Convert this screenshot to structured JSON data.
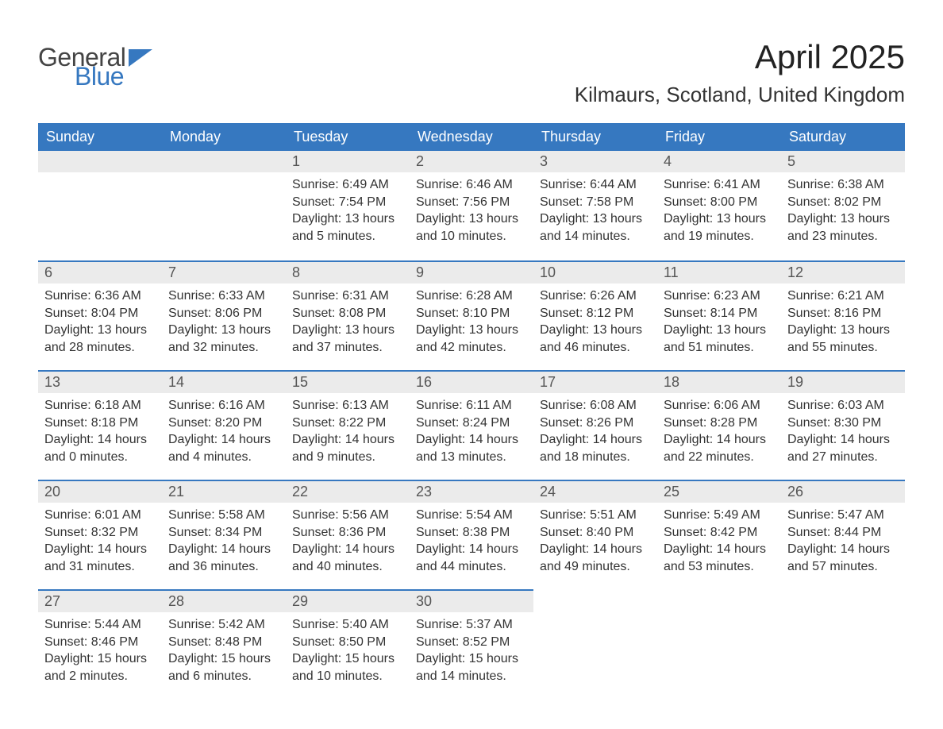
{
  "brand": {
    "word1": "General",
    "word2": "Blue"
  },
  "title": "April 2025",
  "location": "Kilmaurs, Scotland, United Kingdom",
  "colors": {
    "header_bg": "#3678c0",
    "header_text": "#ffffff",
    "strip_bg": "#ebebeb",
    "strip_text": "#555555",
    "body_text": "#333333",
    "border": "#3678c0",
    "page_bg": "#ffffff"
  },
  "day_headers": [
    "Sunday",
    "Monday",
    "Tuesday",
    "Wednesday",
    "Thursday",
    "Friday",
    "Saturday"
  ],
  "weeks": [
    [
      {
        "date": "",
        "sunrise": "",
        "sunset": "",
        "daylight": ""
      },
      {
        "date": "",
        "sunrise": "",
        "sunset": "",
        "daylight": ""
      },
      {
        "date": "1",
        "sunrise": "Sunrise: 6:49 AM",
        "sunset": "Sunset: 7:54 PM",
        "daylight": "Daylight: 13 hours and 5 minutes."
      },
      {
        "date": "2",
        "sunrise": "Sunrise: 6:46 AM",
        "sunset": "Sunset: 7:56 PM",
        "daylight": "Daylight: 13 hours and 10 minutes."
      },
      {
        "date": "3",
        "sunrise": "Sunrise: 6:44 AM",
        "sunset": "Sunset: 7:58 PM",
        "daylight": "Daylight: 13 hours and 14 minutes."
      },
      {
        "date": "4",
        "sunrise": "Sunrise: 6:41 AM",
        "sunset": "Sunset: 8:00 PM",
        "daylight": "Daylight: 13 hours and 19 minutes."
      },
      {
        "date": "5",
        "sunrise": "Sunrise: 6:38 AM",
        "sunset": "Sunset: 8:02 PM",
        "daylight": "Daylight: 13 hours and 23 minutes."
      }
    ],
    [
      {
        "date": "6",
        "sunrise": "Sunrise: 6:36 AM",
        "sunset": "Sunset: 8:04 PM",
        "daylight": "Daylight: 13 hours and 28 minutes."
      },
      {
        "date": "7",
        "sunrise": "Sunrise: 6:33 AM",
        "sunset": "Sunset: 8:06 PM",
        "daylight": "Daylight: 13 hours and 32 minutes."
      },
      {
        "date": "8",
        "sunrise": "Sunrise: 6:31 AM",
        "sunset": "Sunset: 8:08 PM",
        "daylight": "Daylight: 13 hours and 37 minutes."
      },
      {
        "date": "9",
        "sunrise": "Sunrise: 6:28 AM",
        "sunset": "Sunset: 8:10 PM",
        "daylight": "Daylight: 13 hours and 42 minutes."
      },
      {
        "date": "10",
        "sunrise": "Sunrise: 6:26 AM",
        "sunset": "Sunset: 8:12 PM",
        "daylight": "Daylight: 13 hours and 46 minutes."
      },
      {
        "date": "11",
        "sunrise": "Sunrise: 6:23 AM",
        "sunset": "Sunset: 8:14 PM",
        "daylight": "Daylight: 13 hours and 51 minutes."
      },
      {
        "date": "12",
        "sunrise": "Sunrise: 6:21 AM",
        "sunset": "Sunset: 8:16 PM",
        "daylight": "Daylight: 13 hours and 55 minutes."
      }
    ],
    [
      {
        "date": "13",
        "sunrise": "Sunrise: 6:18 AM",
        "sunset": "Sunset: 8:18 PM",
        "daylight": "Daylight: 14 hours and 0 minutes."
      },
      {
        "date": "14",
        "sunrise": "Sunrise: 6:16 AM",
        "sunset": "Sunset: 8:20 PM",
        "daylight": "Daylight: 14 hours and 4 minutes."
      },
      {
        "date": "15",
        "sunrise": "Sunrise: 6:13 AM",
        "sunset": "Sunset: 8:22 PM",
        "daylight": "Daylight: 14 hours and 9 minutes."
      },
      {
        "date": "16",
        "sunrise": "Sunrise: 6:11 AM",
        "sunset": "Sunset: 8:24 PM",
        "daylight": "Daylight: 14 hours and 13 minutes."
      },
      {
        "date": "17",
        "sunrise": "Sunrise: 6:08 AM",
        "sunset": "Sunset: 8:26 PM",
        "daylight": "Daylight: 14 hours and 18 minutes."
      },
      {
        "date": "18",
        "sunrise": "Sunrise: 6:06 AM",
        "sunset": "Sunset: 8:28 PM",
        "daylight": "Daylight: 14 hours and 22 minutes."
      },
      {
        "date": "19",
        "sunrise": "Sunrise: 6:03 AM",
        "sunset": "Sunset: 8:30 PM",
        "daylight": "Daylight: 14 hours and 27 minutes."
      }
    ],
    [
      {
        "date": "20",
        "sunrise": "Sunrise: 6:01 AM",
        "sunset": "Sunset: 8:32 PM",
        "daylight": "Daylight: 14 hours and 31 minutes."
      },
      {
        "date": "21",
        "sunrise": "Sunrise: 5:58 AM",
        "sunset": "Sunset: 8:34 PM",
        "daylight": "Daylight: 14 hours and 36 minutes."
      },
      {
        "date": "22",
        "sunrise": "Sunrise: 5:56 AM",
        "sunset": "Sunset: 8:36 PM",
        "daylight": "Daylight: 14 hours and 40 minutes."
      },
      {
        "date": "23",
        "sunrise": "Sunrise: 5:54 AM",
        "sunset": "Sunset: 8:38 PM",
        "daylight": "Daylight: 14 hours and 44 minutes."
      },
      {
        "date": "24",
        "sunrise": "Sunrise: 5:51 AM",
        "sunset": "Sunset: 8:40 PM",
        "daylight": "Daylight: 14 hours and 49 minutes."
      },
      {
        "date": "25",
        "sunrise": "Sunrise: 5:49 AM",
        "sunset": "Sunset: 8:42 PM",
        "daylight": "Daylight: 14 hours and 53 minutes."
      },
      {
        "date": "26",
        "sunrise": "Sunrise: 5:47 AM",
        "sunset": "Sunset: 8:44 PM",
        "daylight": "Daylight: 14 hours and 57 minutes."
      }
    ],
    [
      {
        "date": "27",
        "sunrise": "Sunrise: 5:44 AM",
        "sunset": "Sunset: 8:46 PM",
        "daylight": "Daylight: 15 hours and 2 minutes."
      },
      {
        "date": "28",
        "sunrise": "Sunrise: 5:42 AM",
        "sunset": "Sunset: 8:48 PM",
        "daylight": "Daylight: 15 hours and 6 minutes."
      },
      {
        "date": "29",
        "sunrise": "Sunrise: 5:40 AM",
        "sunset": "Sunset: 8:50 PM",
        "daylight": "Daylight: 15 hours and 10 minutes."
      },
      {
        "date": "30",
        "sunrise": "Sunrise: 5:37 AM",
        "sunset": "Sunset: 8:52 PM",
        "daylight": "Daylight: 15 hours and 14 minutes."
      },
      {
        "date": "",
        "sunrise": "",
        "sunset": "",
        "daylight": ""
      },
      {
        "date": "",
        "sunrise": "",
        "sunset": "",
        "daylight": ""
      },
      {
        "date": "",
        "sunrise": "",
        "sunset": "",
        "daylight": ""
      }
    ]
  ]
}
